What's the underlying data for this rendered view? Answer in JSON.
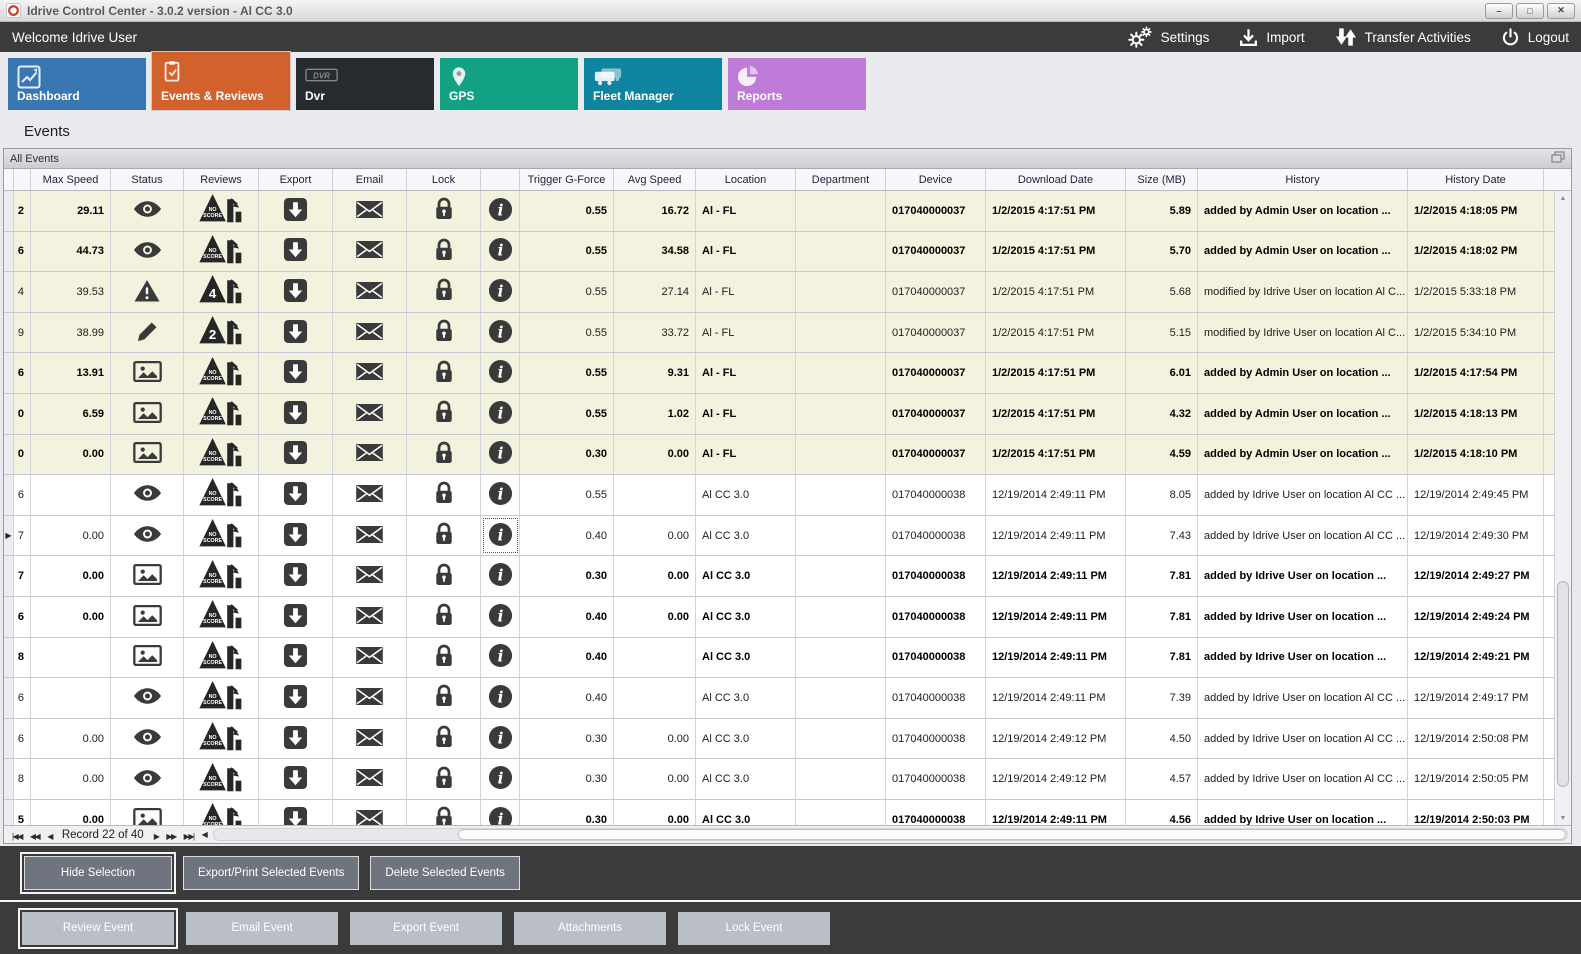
{
  "window": {
    "title": "Idrive Control Center - 3.0.2 version - Al CC 3.0",
    "controls": [
      {
        "name": "minimize",
        "glyph": "–"
      },
      {
        "name": "maximize",
        "glyph": "□"
      },
      {
        "name": "close",
        "glyph": "✕"
      }
    ]
  },
  "topbar": {
    "welcome": "Welcome Idrive User",
    "actions": [
      {
        "label": "Settings",
        "icon": "gears-icon"
      },
      {
        "label": "Import",
        "icon": "import-icon"
      },
      {
        "label": "Transfer Activities",
        "icon": "transfer-icon"
      },
      {
        "label": "Logout",
        "icon": "power-icon"
      }
    ]
  },
  "tabs": [
    {
      "label": "Dashboard",
      "icon": "line-chart-icon",
      "color": "#3877b2",
      "active": false
    },
    {
      "label": "Events & Reviews",
      "icon": "checklist-icon",
      "color": "#d2612c",
      "active": true
    },
    {
      "label": "Dvr",
      "icon": "dvr-icon",
      "color": "#272b30",
      "active": false
    },
    {
      "label": "GPS",
      "icon": "map-pin-icon",
      "color": "#12a283",
      "active": false
    },
    {
      "label": "Fleet Manager",
      "icon": "fleet-icon",
      "color": "#0f84a0",
      "active": false
    },
    {
      "label": "Reports",
      "icon": "pie-chart-icon",
      "color": "#bf7bd8",
      "active": false
    }
  ],
  "page_title": "Events",
  "panel_title": "All Events",
  "grid": {
    "columns": [
      {
        "key": "indicator",
        "label": ""
      },
      {
        "key": "id",
        "label": ""
      },
      {
        "key": "max_speed",
        "label": "Max Speed"
      },
      {
        "key": "status",
        "label": "Status"
      },
      {
        "key": "reviews",
        "label": "Reviews"
      },
      {
        "key": "export",
        "label": "Export"
      },
      {
        "key": "email",
        "label": "Email"
      },
      {
        "key": "lock",
        "label": "Lock"
      },
      {
        "key": "info",
        "label": ""
      },
      {
        "key": "trigger",
        "label": "Trigger G-Force"
      },
      {
        "key": "avg_speed",
        "label": "Avg Speed"
      },
      {
        "key": "location",
        "label": "Location"
      },
      {
        "key": "department",
        "label": "Department"
      },
      {
        "key": "device",
        "label": "Device"
      },
      {
        "key": "download_date",
        "label": "Download Date"
      },
      {
        "key": "size",
        "label": "Size (MB)"
      },
      {
        "key": "history",
        "label": "History"
      },
      {
        "key": "history_date",
        "label": "History Date"
      }
    ],
    "rows": [
      {
        "id": "2",
        "max_speed": "29.11",
        "status": "eye",
        "reviews": "no-score",
        "trigger": "0.55",
        "avg_speed": "16.72",
        "location": "Al - FL",
        "department": "",
        "device": "017040000037",
        "download_date": "1/2/2015 4:17:51 PM",
        "size": "5.89",
        "history": "added by Admin User on location ...",
        "history_date": "1/2/2015 4:18:05 PM",
        "bold": true,
        "shade": "cream",
        "selected": false
      },
      {
        "id": "6",
        "max_speed": "44.73",
        "status": "eye",
        "reviews": "no-score",
        "trigger": "0.55",
        "avg_speed": "34.58",
        "location": "Al - FL",
        "department": "",
        "device": "017040000037",
        "download_date": "1/2/2015 4:17:51 PM",
        "size": "5.70",
        "history": "added by Admin User on location ...",
        "history_date": "1/2/2015 4:18:02 PM",
        "bold": true,
        "shade": "cream",
        "selected": false
      },
      {
        "id": "4",
        "max_speed": "39.53",
        "status": "warning",
        "reviews": "score-4",
        "trigger": "0.55",
        "avg_speed": "27.14",
        "location": "Al - FL",
        "department": "",
        "device": "017040000037",
        "download_date": "1/2/2015 4:17:51 PM",
        "size": "5.68",
        "history": "modified by Idrive User on location Al C...",
        "history_date": "1/2/2015 5:33:18 PM",
        "bold": false,
        "shade": "cream",
        "selected": false
      },
      {
        "id": "9",
        "max_speed": "38.99",
        "status": "pencil",
        "reviews": "score-2",
        "trigger": "0.55",
        "avg_speed": "33.72",
        "location": "Al - FL",
        "department": "",
        "device": "017040000037",
        "download_date": "1/2/2015 4:17:51 PM",
        "size": "5.15",
        "history": "modified by Idrive User on location Al C...",
        "history_date": "1/2/2015 5:34:10 PM",
        "bold": false,
        "shade": "cream",
        "selected": false
      },
      {
        "id": "6",
        "max_speed": "13.91",
        "status": "image",
        "reviews": "no-score",
        "trigger": "0.55",
        "avg_speed": "9.31",
        "location": "Al - FL",
        "department": "",
        "device": "017040000037",
        "download_date": "1/2/2015 4:17:51 PM",
        "size": "6.01",
        "history": "added by Admin User on location ...",
        "history_date": "1/2/2015 4:17:54 PM",
        "bold": true,
        "shade": "cream",
        "selected": false
      },
      {
        "id": "0",
        "max_speed": "6.59",
        "status": "image",
        "reviews": "no-score",
        "trigger": "0.55",
        "avg_speed": "1.02",
        "location": "Al - FL",
        "department": "",
        "device": "017040000037",
        "download_date": "1/2/2015 4:17:51 PM",
        "size": "4.32",
        "history": "added by Admin User on location ...",
        "history_date": "1/2/2015 4:18:13 PM",
        "bold": true,
        "shade": "cream",
        "selected": false
      },
      {
        "id": "0",
        "max_speed": "0.00",
        "status": "image",
        "reviews": "no-score",
        "trigger": "0.30",
        "avg_speed": "0.00",
        "location": "Al - FL",
        "department": "",
        "device": "017040000037",
        "download_date": "1/2/2015 4:17:51 PM",
        "size": "4.59",
        "history": "added by Admin User on location ...",
        "history_date": "1/2/2015 4:18:10 PM",
        "bold": true,
        "shade": "cream",
        "selected": false
      },
      {
        "id": "6",
        "max_speed": "",
        "status": "eye",
        "reviews": "no-score",
        "trigger": "0.55",
        "avg_speed": "",
        "location": "Al CC 3.0",
        "department": "",
        "device": "017040000038",
        "download_date": "12/19/2014 2:49:11 PM",
        "size": "8.05",
        "history": "added by Idrive User on location Al CC ...",
        "history_date": "12/19/2014 2:49:45 PM",
        "bold": false,
        "shade": "white",
        "selected": false
      },
      {
        "id": "7",
        "max_speed": "0.00",
        "status": "eye",
        "reviews": "no-score",
        "trigger": "0.40",
        "avg_speed": "0.00",
        "location": "Al CC 3.0",
        "department": "",
        "device": "017040000038",
        "download_date": "12/19/2014 2:49:11 PM",
        "size": "7.43",
        "history": "added by Idrive User on location Al CC ...",
        "history_date": "12/19/2014 2:49:30 PM",
        "bold": false,
        "shade": "white",
        "selected": true
      },
      {
        "id": "7",
        "max_speed": "0.00",
        "status": "image",
        "reviews": "no-score",
        "trigger": "0.30",
        "avg_speed": "0.00",
        "location": "Al CC 3.0",
        "department": "",
        "device": "017040000038",
        "download_date": "12/19/2014 2:49:11 PM",
        "size": "7.81",
        "history": "added by Idrive User on location ...",
        "history_date": "12/19/2014 2:49:27 PM",
        "bold": true,
        "shade": "white",
        "selected": false
      },
      {
        "id": "6",
        "max_speed": "0.00",
        "status": "image",
        "reviews": "no-score",
        "trigger": "0.40",
        "avg_speed": "0.00",
        "location": "Al CC 3.0",
        "department": "",
        "device": "017040000038",
        "download_date": "12/19/2014 2:49:11 PM",
        "size": "7.81",
        "history": "added by Idrive User on location ...",
        "history_date": "12/19/2014 2:49:24 PM",
        "bold": true,
        "shade": "white",
        "selected": false
      },
      {
        "id": "8",
        "max_speed": "",
        "status": "image",
        "reviews": "no-score",
        "trigger": "0.40",
        "avg_speed": "",
        "location": "Al CC 3.0",
        "department": "",
        "device": "017040000038",
        "download_date": "12/19/2014 2:49:11 PM",
        "size": "7.81",
        "history": "added by Idrive User on location ...",
        "history_date": "12/19/2014 2:49:21 PM",
        "bold": true,
        "shade": "white",
        "selected": false
      },
      {
        "id": "6",
        "max_speed": "",
        "status": "eye",
        "reviews": "no-score",
        "trigger": "0.40",
        "avg_speed": "",
        "location": "Al CC 3.0",
        "department": "",
        "device": "017040000038",
        "download_date": "12/19/2014 2:49:11 PM",
        "size": "7.39",
        "history": "added by Idrive User on location Al CC ...",
        "history_date": "12/19/2014 2:49:17 PM",
        "bold": false,
        "shade": "white",
        "selected": false
      },
      {
        "id": "6",
        "max_speed": "0.00",
        "status": "eye",
        "reviews": "no-score",
        "trigger": "0.30",
        "avg_speed": "0.00",
        "location": "Al CC 3.0",
        "department": "",
        "device": "017040000038",
        "download_date": "12/19/2014 2:49:12 PM",
        "size": "4.50",
        "history": "added by Idrive User on location Al CC ...",
        "history_date": "12/19/2014 2:50:08 PM",
        "bold": false,
        "shade": "white",
        "selected": false
      },
      {
        "id": "8",
        "max_speed": "0.00",
        "status": "eye",
        "reviews": "no-score",
        "trigger": "0.30",
        "avg_speed": "0.00",
        "location": "Al CC 3.0",
        "department": "",
        "device": "017040000038",
        "download_date": "12/19/2014 2:49:12 PM",
        "size": "4.57",
        "history": "added by Idrive User on location Al CC ...",
        "history_date": "12/19/2014 2:50:05 PM",
        "bold": false,
        "shade": "white",
        "selected": false
      },
      {
        "id": "5",
        "max_speed": "0.00",
        "status": "image",
        "reviews": "no-score",
        "trigger": "0.30",
        "avg_speed": "0.00",
        "location": "Al CC 3.0",
        "department": "",
        "device": "017040000038",
        "download_date": "12/19/2014 2:49:11 PM",
        "size": "4.56",
        "history": "added by Idrive User on location ...",
        "history_date": "12/19/2014 2:50:03 PM",
        "bold": true,
        "shade": "white",
        "selected": false
      }
    ]
  },
  "pager": {
    "record_label": "Record 22 of 40",
    "buttons_left": [
      "|◀◀",
      "◀◀",
      "◀"
    ],
    "buttons_right": [
      "▶",
      "▶▶",
      "▶▶|"
    ],
    "scroll_left_button": "◀"
  },
  "action_bar_primary": [
    {
      "label": "Hide Selection",
      "focused": true
    },
    {
      "label": "Export/Print Selected Events",
      "focused": false
    },
    {
      "label": "Delete Selected  Events",
      "focused": false
    }
  ],
  "action_bar_secondary": [
    {
      "label": "Review Event",
      "focused": true
    },
    {
      "label": "Email Event",
      "focused": false
    },
    {
      "label": "Export Event",
      "focused": false
    },
    {
      "label": "Attachments",
      "focused": false
    },
    {
      "label": "Lock Event",
      "focused": false
    }
  ]
}
